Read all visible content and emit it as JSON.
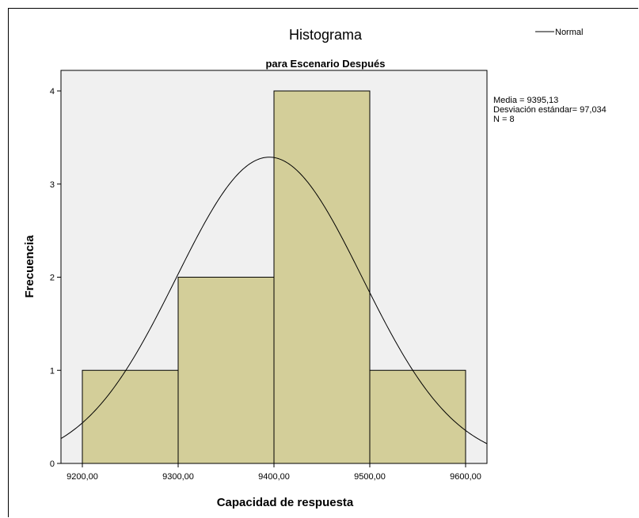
{
  "chart_data": {
    "type": "bar",
    "title": "Histograma",
    "subtitle": "para Escenario Después",
    "xlabel": "Capacidad de respuesta",
    "ylabel": "Frecuencia",
    "xlim": [
      9180,
      9620
    ],
    "ylim": [
      0,
      4.2
    ],
    "bins": [
      {
        "start": 9200,
        "end": 9300,
        "count": 1
      },
      {
        "start": 9300,
        "end": 9400,
        "count": 2
      },
      {
        "start": 9400,
        "end": 9500,
        "count": 4
      },
      {
        "start": 9500,
        "end": 9600,
        "count": 1
      }
    ],
    "x_ticks": [
      {
        "value": 9200,
        "label": "9200,00"
      },
      {
        "value": 9300,
        "label": "9300,00"
      },
      {
        "value": 9400,
        "label": "9400,00"
      },
      {
        "value": 9500,
        "label": "9500,00"
      },
      {
        "value": 9600,
        "label": "9600,00"
      }
    ],
    "y_ticks": [
      {
        "value": 0,
        "label": "0"
      },
      {
        "value": 1,
        "label": "1"
      },
      {
        "value": 2,
        "label": "2"
      },
      {
        "value": 3,
        "label": "3"
      },
      {
        "value": 4,
        "label": "4"
      }
    ],
    "normal_curve": {
      "mean": 9395.13,
      "sd": 97.034,
      "n": 8,
      "bin_width": 100
    },
    "legend": {
      "label": "Normal",
      "position": "top-right"
    },
    "stats": [
      "Media = 9395,13",
      "Desviación estándar= 97,034",
      "N = 8"
    ],
    "grid": false,
    "colors": {
      "bar_fill": "#d3ce99",
      "bar_stroke": "#000000",
      "plot_bg": "#f0f0f0",
      "curve": "#000000"
    }
  }
}
